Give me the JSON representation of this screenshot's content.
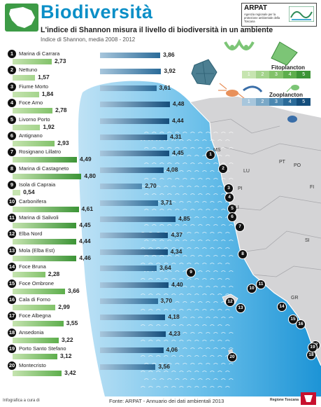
{
  "header": {
    "title": "Biodiversità",
    "subtitle": "L'indice di Shannon misura il livello di biodiversità in un ambiente",
    "note": "Indice di Shannon, media 2008 - 2012",
    "agency": "ARPAT",
    "agency_desc": "Agenzia regionale per la protezione ambientale della Toscana"
  },
  "legend": {
    "fito": {
      "title": "Fitoplancton",
      "levels": [
        "1",
        "2",
        "3",
        "4",
        "5"
      ],
      "colors": [
        "#c6e4b0",
        "#a4d48c",
        "#82c26a",
        "#5dae4c",
        "#3c9436"
      ]
    },
    "zoo": {
      "title": "Zooplancton",
      "levels": [
        "1",
        "2",
        "3",
        "4",
        "5"
      ],
      "colors": [
        "#a7c6dc",
        "#7aa8c7",
        "#4c88b1",
        "#2b6b99",
        "#154e7c"
      ]
    }
  },
  "chart_data": {
    "type": "bar",
    "categories": [
      "Marina di Carrara",
      "Nettuno",
      "Fiume Morto",
      "Foce Arno",
      "Livorno Porto",
      "Antignano",
      "Rosignano Lillatro",
      "Marina di Castagneto",
      "Isola di Capraia",
      "Carbonifera",
      "Marina di Salivoli",
      "Elba Nord",
      "Mola (Elba Est)",
      "Foce Bruna",
      "Foce Ombrone",
      "Cala di Forno",
      "Foce Albegna",
      "Ansedonia",
      "Porto Santo Stefano",
      "Montecristo"
    ],
    "numbers": [
      "1",
      "2",
      "3",
      "4",
      "5",
      "6",
      "7",
      "8",
      "9",
      "10",
      "11",
      "12",
      "13",
      "14",
      "15",
      "16",
      "17",
      "18",
      "19",
      "20"
    ],
    "series": [
      {
        "name": "Fitoplancton",
        "values": [
          2.73,
          1.57,
          1.84,
          2.78,
          1.92,
          2.93,
          4.49,
          4.8,
          0.54,
          4.61,
          4.45,
          4.44,
          4.46,
          2.28,
          3.66,
          2.99,
          3.55,
          3.22,
          3.12,
          3.42
        ],
        "labels": [
          "2,73",
          "1,57",
          "1,84",
          "2,78",
          "1,92",
          "2,93",
          "4,49",
          "4,80",
          "0,54",
          "4,61",
          "4,45",
          "4,44",
          "4,46",
          "2,28",
          "3,66",
          "2,99",
          "3,55",
          "3,22",
          "3,12",
          "3,42"
        ]
      },
      {
        "name": "Zooplancton",
        "values": [
          3.86,
          3.92,
          3.61,
          4.48,
          4.44,
          4.31,
          4.45,
          4.08,
          2.7,
          3.71,
          4.85,
          4.37,
          4.34,
          3.64,
          4.4,
          3.7,
          4.18,
          4.23,
          4.06,
          3.56
        ],
        "labels": [
          "3,86",
          "3,92",
          "3,61",
          "4,48",
          "4,44",
          "4,31",
          "4,45",
          "4,08",
          "2,70",
          "3,71",
          "4,85",
          "4,37",
          "4,34",
          "3,64",
          "4,40",
          "3,70",
          "4,18",
          "4,23",
          "4,06",
          "3,56"
        ]
      }
    ],
    "ylim": [
      0,
      5
    ],
    "grid": false,
    "legend_position": "top-right"
  },
  "map": {
    "cities": [
      "MS",
      "LU",
      "PT",
      "PO",
      "PI",
      "FI",
      "LI",
      "SI",
      "GR"
    ]
  },
  "footer": {
    "credit": "Infografica a cura di",
    "source": "Fonte: ARPAT - Annuario dei dati ambientali 2013",
    "region": "Regione Toscana"
  }
}
